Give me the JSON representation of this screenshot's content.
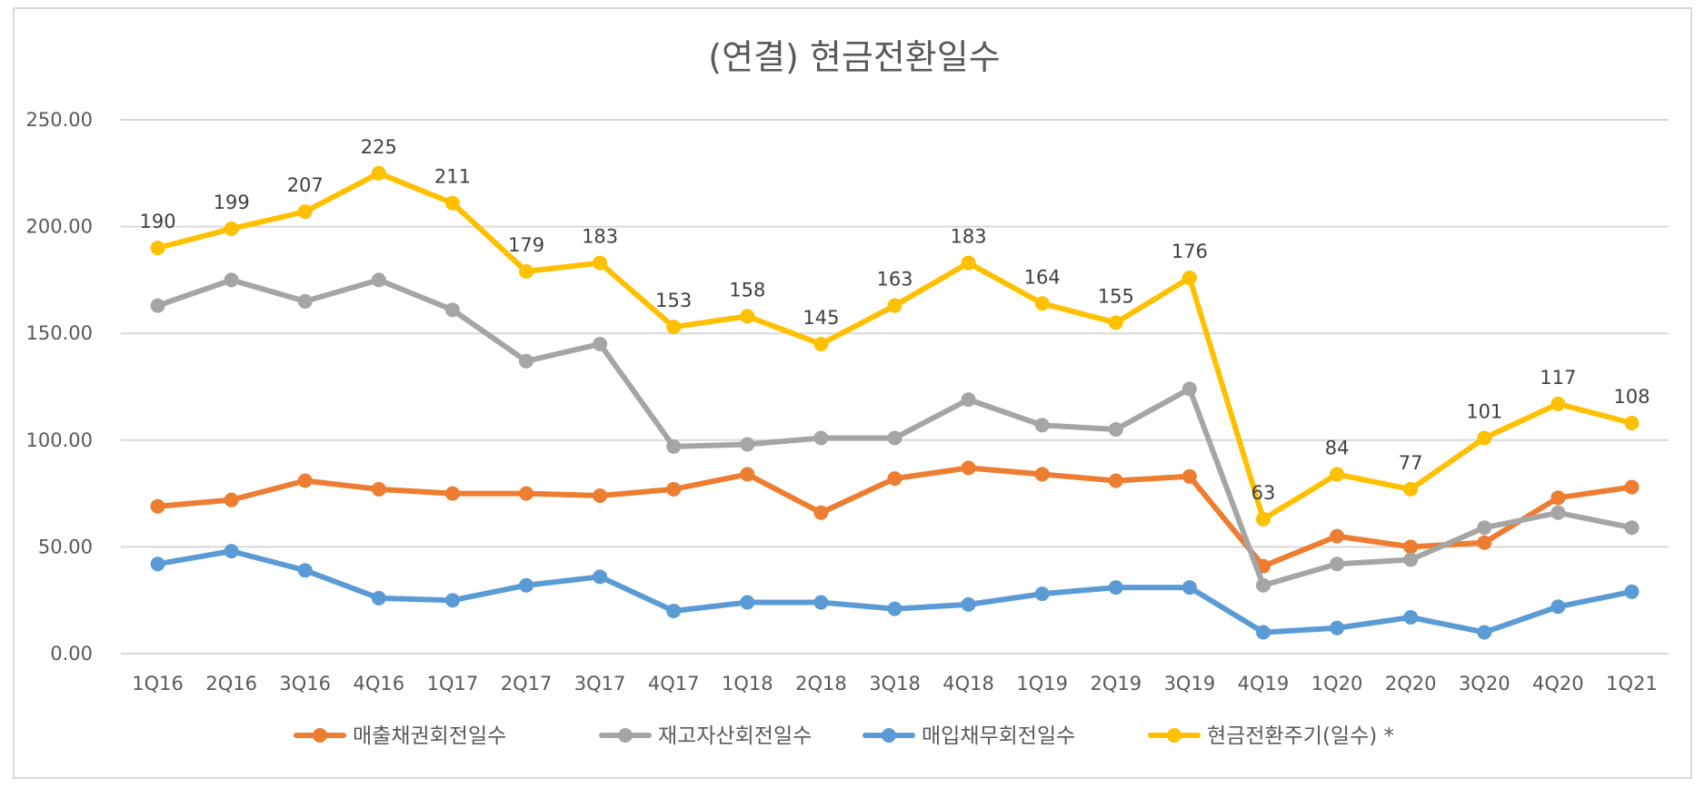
{
  "chart_data": {
    "type": "line",
    "title": "(연결) 현금전환일수",
    "xlabel": "",
    "ylabel": "",
    "ylim": [
      0,
      250
    ],
    "yticks": [
      0,
      50,
      100,
      150,
      200,
      250
    ],
    "ytick_labels": [
      "0.00",
      "50.00",
      "100.00",
      "150.00",
      "200.00",
      "250.00"
    ],
    "grid": true,
    "legend_position": "bottom",
    "categories": [
      "1Q16",
      "2Q16",
      "3Q16",
      "4Q16",
      "1Q17",
      "2Q17",
      "3Q17",
      "4Q17",
      "1Q18",
      "2Q18",
      "3Q18",
      "4Q18",
      "1Q19",
      "2Q19",
      "3Q19",
      "4Q19",
      "1Q20",
      "2Q20",
      "3Q20",
      "4Q20",
      "1Q21"
    ],
    "series": [
      {
        "name": "매출채권회전일수",
        "color": "#ED7D31",
        "values": [
          69,
          72,
          81,
          77,
          75,
          75,
          74,
          77,
          84,
          66,
          82,
          87,
          84,
          81,
          83,
          41,
          55,
          50,
          52,
          73,
          78
        ]
      },
      {
        "name": "재고자산회전일수",
        "color": "#A5A5A5",
        "values": [
          163,
          175,
          165,
          175,
          161,
          137,
          145,
          97,
          98,
          101,
          101,
          119,
          107,
          105,
          124,
          32,
          42,
          44,
          59,
          66,
          59
        ]
      },
      {
        "name": "매입채무회전일수",
        "color": "#5B9BD5",
        "values": [
          42,
          48,
          39,
          26,
          25,
          32,
          36,
          20,
          24,
          24,
          21,
          23,
          28,
          31,
          31,
          10,
          12,
          17,
          10,
          22,
          29
        ]
      },
      {
        "name": "현금전환주기(일수) *",
        "color": "#FFC000",
        "values": [
          190,
          199,
          207,
          225,
          211,
          179,
          183,
          153,
          158,
          145,
          163,
          183,
          164,
          155,
          176,
          63,
          84,
          77,
          101,
          117,
          108
        ],
        "data_labels": [
          "190",
          "199",
          "207",
          "225",
          "211",
          "179",
          "183",
          "153",
          "158",
          "145",
          "163",
          "183",
          "164",
          "155",
          "176",
          "63",
          "84",
          "77",
          "101",
          "117",
          "108"
        ]
      }
    ]
  }
}
